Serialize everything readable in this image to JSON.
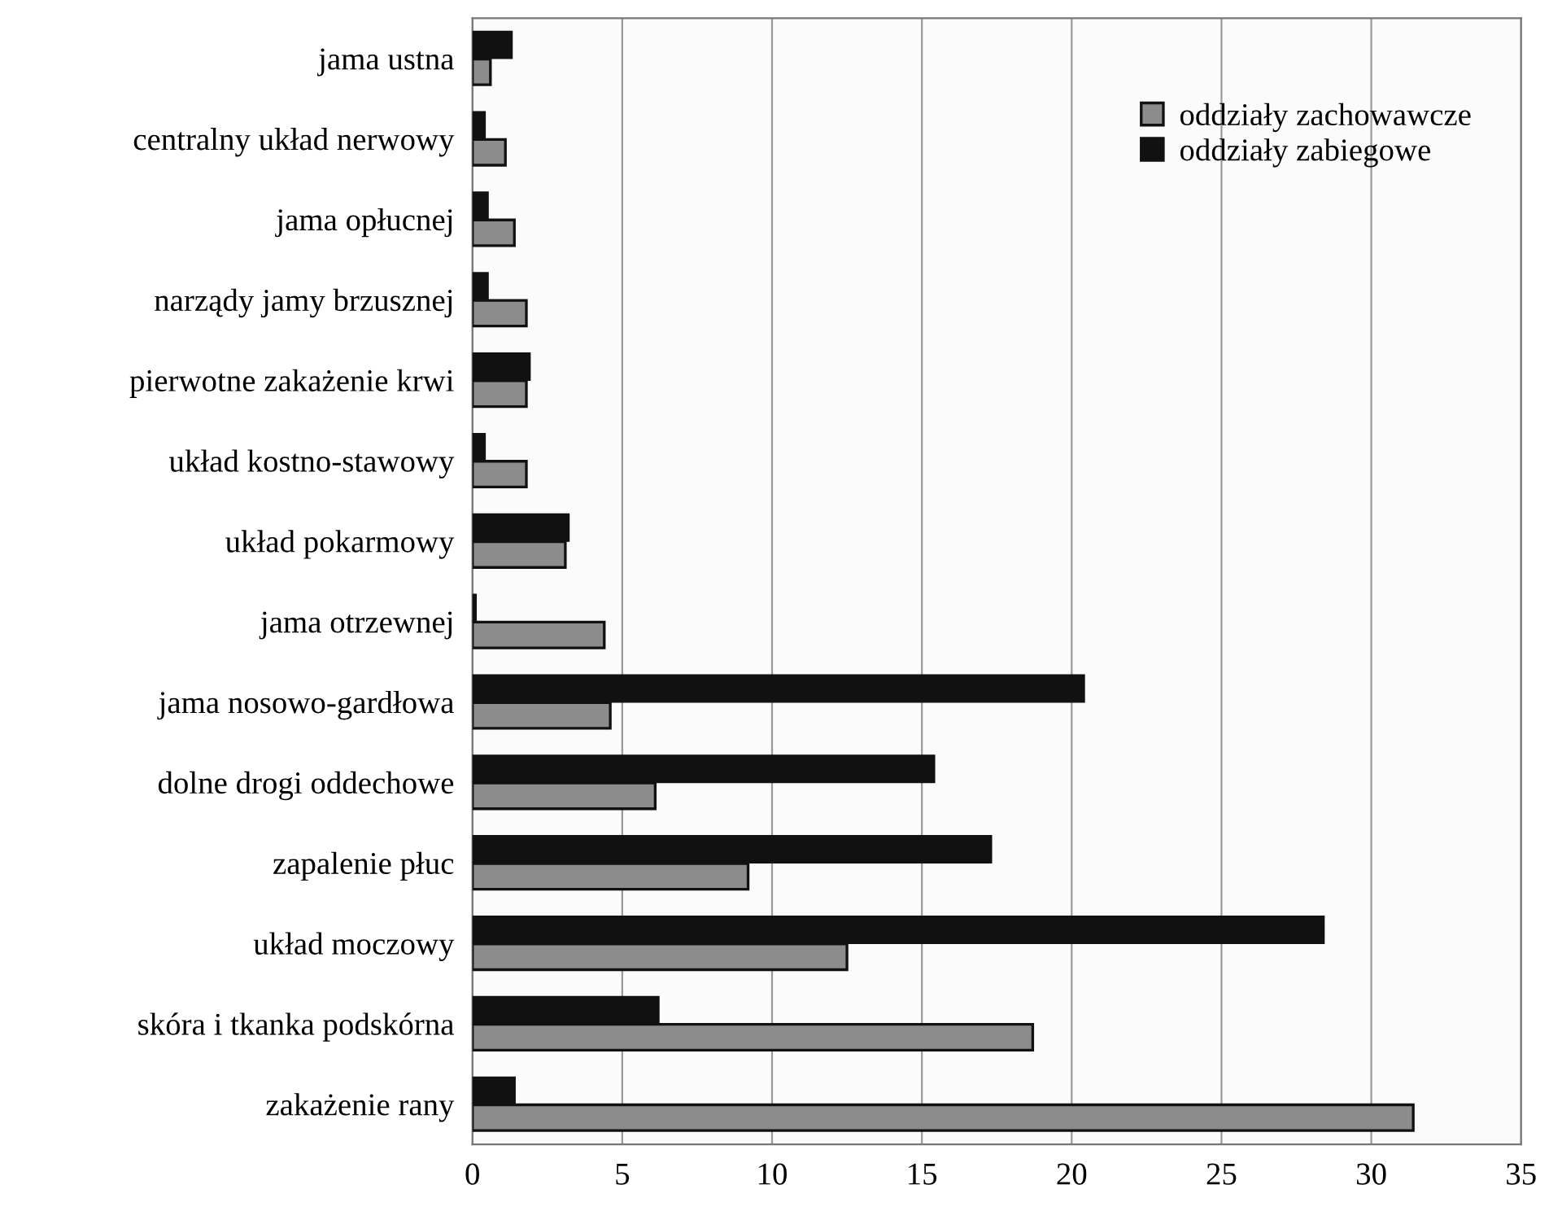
{
  "chart_data": {
    "type": "bar",
    "orientation": "horizontal",
    "categories": [
      "jama ustna",
      "centralny układ nerwowy",
      "jama opłucnej",
      "narządy jamy brzusznej",
      "pierwotne zakażenie krwi",
      "układ kostno-stawowy",
      "układ pokarmowy",
      "jama otrzewnej",
      "jama nosowo-gardłowa",
      "dolne drogi oddechowe",
      "zapalenie płuc",
      "układ moczowy",
      "skóra i tkanka podskórna",
      "zakażenie rany"
    ],
    "series": [
      {
        "name": "oddziały zachowawcze",
        "color": "#8c8c8c",
        "values": [
          0.6,
          1.1,
          1.4,
          1.8,
          1.8,
          1.8,
          3.1,
          4.4,
          4.6,
          6.1,
          9.2,
          12.5,
          18.7,
          31.4
        ]
      },
      {
        "name": "oddziały zabiegowe",
        "color": "#111111",
        "values": [
          1.3,
          0.4,
          0.5,
          0.5,
          1.9,
          0.4,
          3.2,
          0.1,
          20.4,
          15.4,
          17.3,
          28.4,
          6.2,
          1.4
        ]
      }
    ],
    "xlim": [
      0,
      35
    ],
    "xticks": [
      0,
      5,
      10,
      15,
      20,
      25,
      30,
      35
    ],
    "grid": "x",
    "legend": "top right"
  }
}
